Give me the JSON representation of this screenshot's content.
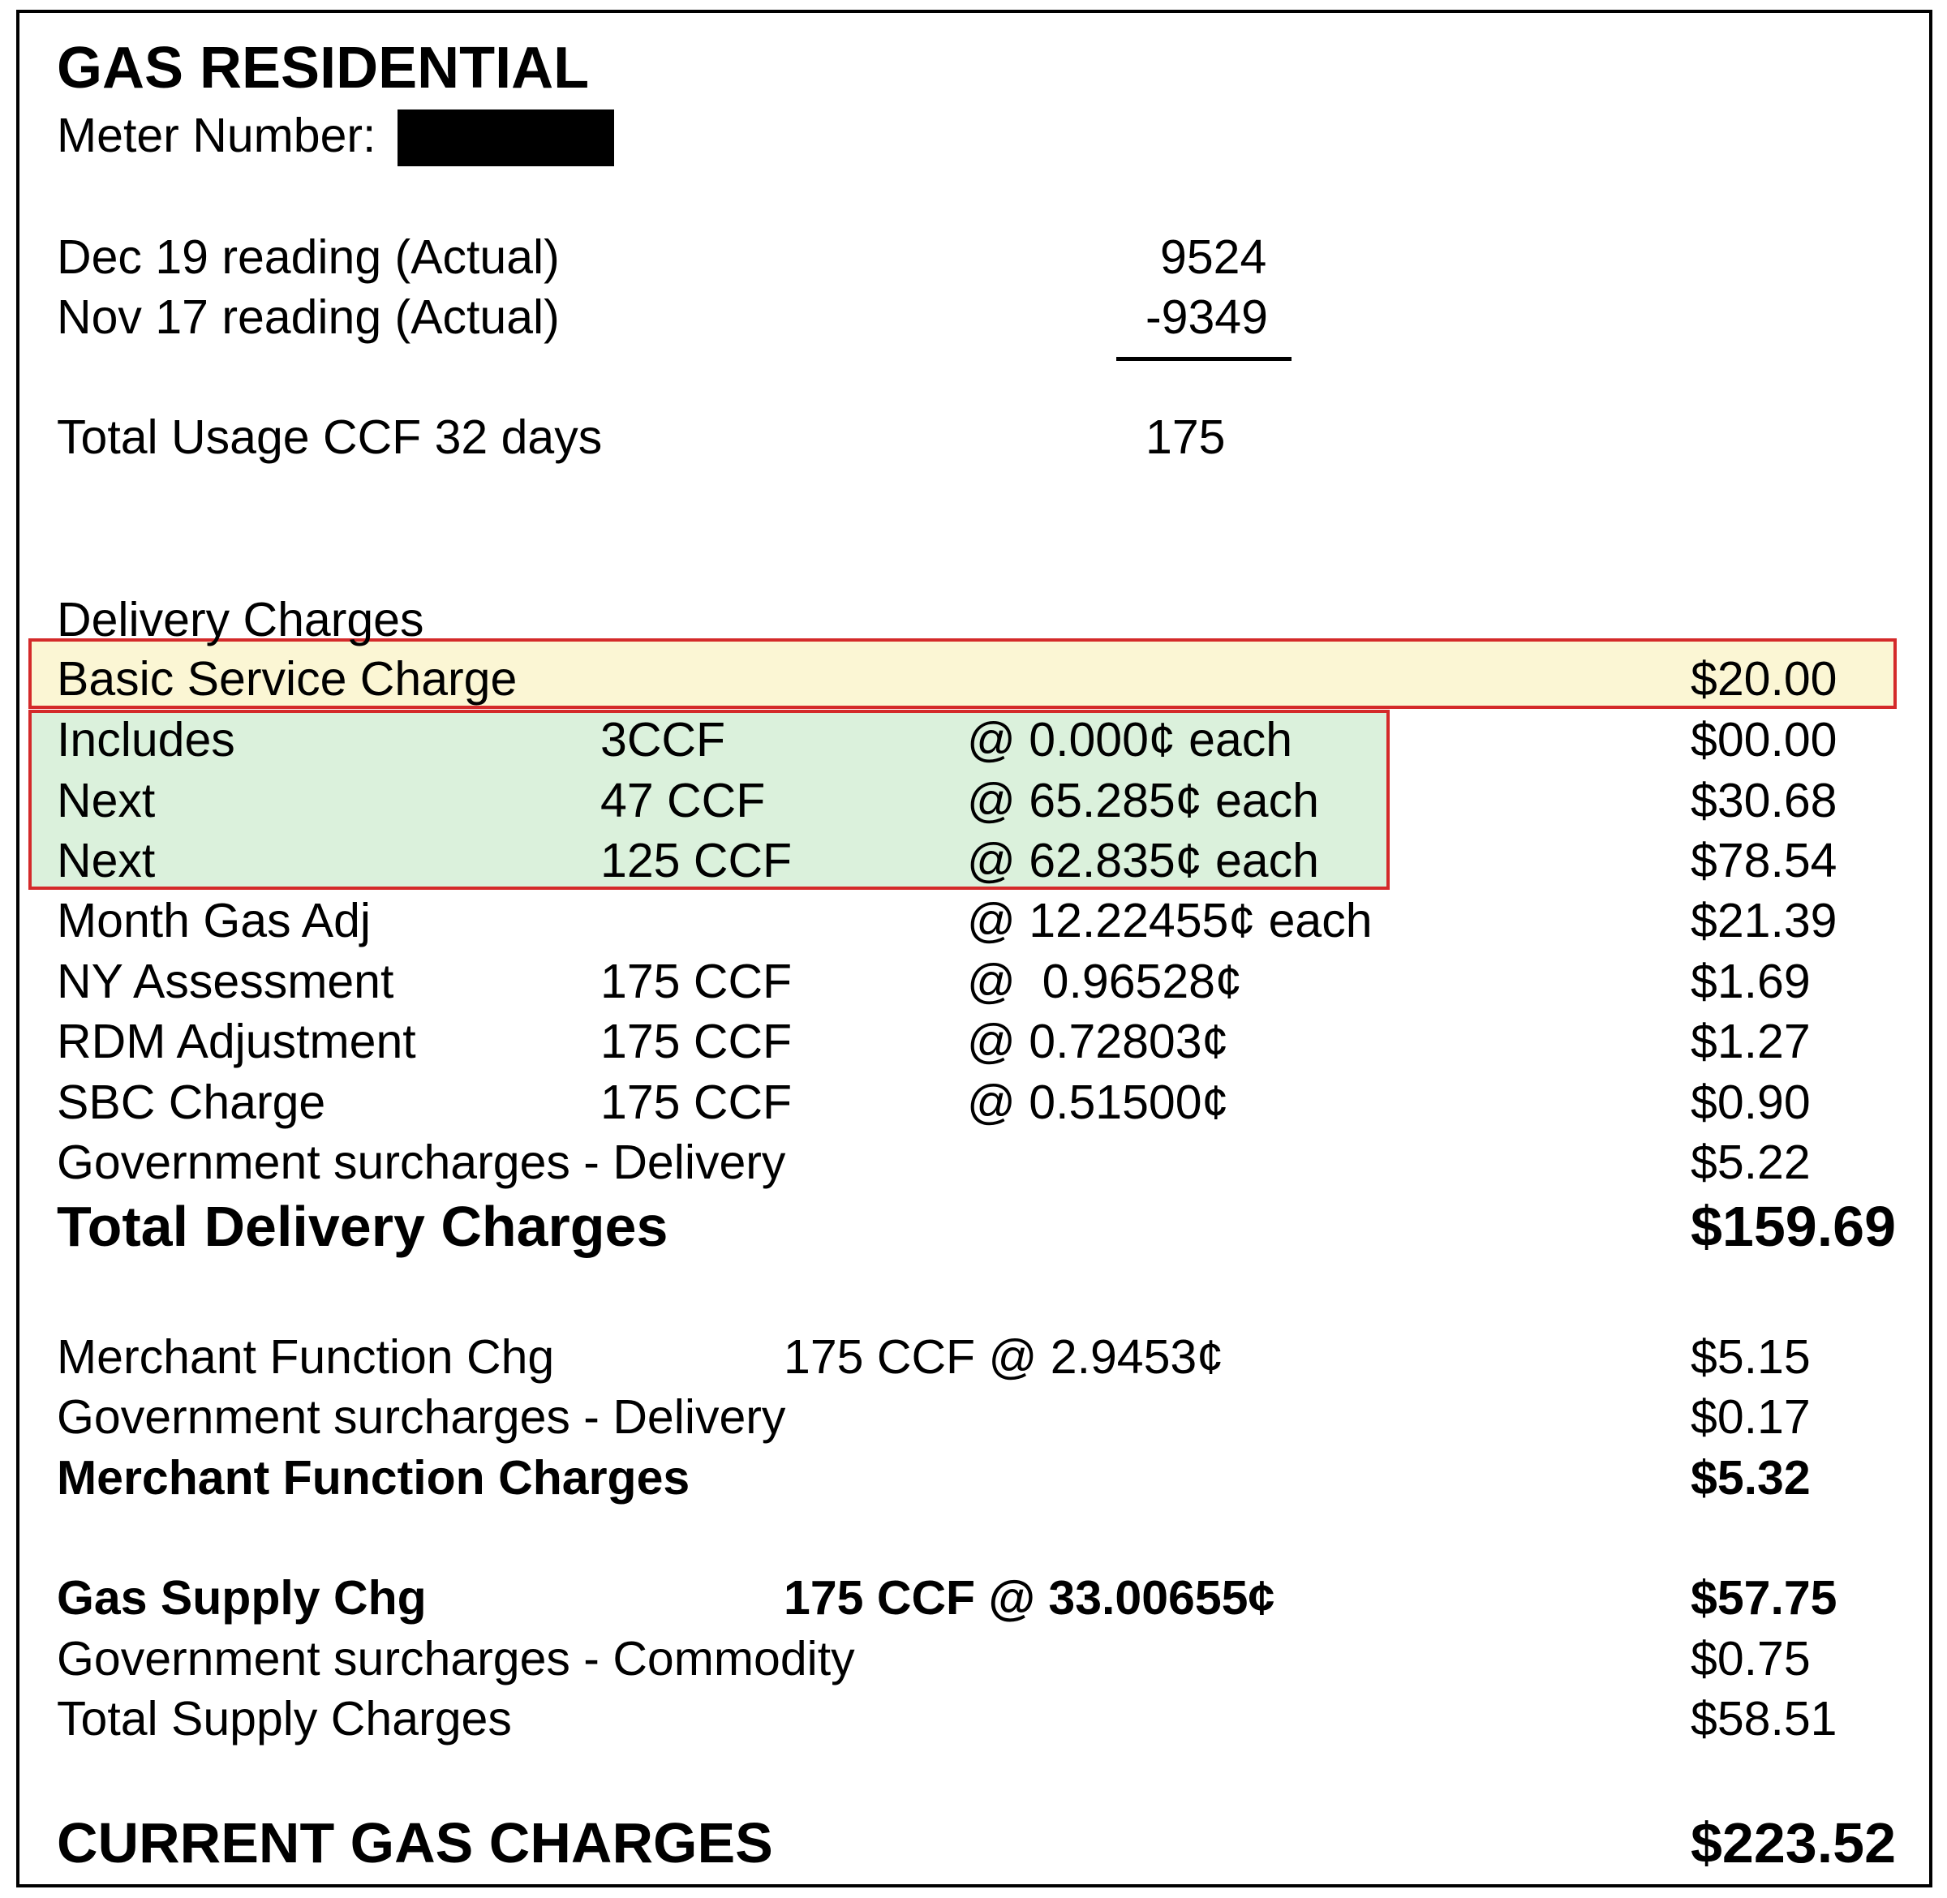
{
  "header": {
    "title": "GAS RESIDENTIAL",
    "meter_label": "Meter Number:"
  },
  "readings": {
    "current": {
      "label": "Dec 19 reading (Actual)",
      "value": "9524"
    },
    "previous": {
      "label": "Nov 17 reading (Actual)",
      "value": "-9349"
    },
    "usage": {
      "label": "Total Usage CCF 32 days",
      "value": "175"
    }
  },
  "delivery": {
    "heading": "Delivery Charges",
    "basic_service": {
      "label": "Basic Service Charge",
      "amount": "$20.00"
    },
    "tiers": [
      {
        "label": "Includes",
        "qty": "3CCF",
        "rate": "@ 0.000¢ each",
        "amount": "$00.00"
      },
      {
        "label": "Next",
        "qty": "47 CCF",
        "rate": "@ 65.285¢ each",
        "amount": "$30.68"
      },
      {
        "label": "Next",
        "qty": "125 CCF",
        "rate": "@ 62.835¢ each",
        "amount": "$78.54"
      }
    ],
    "other": [
      {
        "label": "Month Gas Adj",
        "qty": "",
        "rate": "@ 12.22455¢ each",
        "amount": "$21.39"
      },
      {
        "label": "NY Assessment",
        "qty": "175 CCF",
        "rate": "@  0.96528¢",
        "amount": "$1.69"
      },
      {
        "label": "RDM Adjustment",
        "qty": "175 CCF",
        "rate": "@ 0.72803¢",
        "amount": "$1.27"
      },
      {
        "label": "SBC Charge",
        "qty": "175 CCF",
        "rate": "@ 0.51500¢",
        "amount": "$0.90"
      },
      {
        "label": "Government surcharges - Delivery",
        "qty": "",
        "rate": "",
        "amount": "$5.22"
      }
    ],
    "total": {
      "label": "Total Delivery Charges",
      "amount": "$159.69"
    }
  },
  "merchant": {
    "function_chg": {
      "label": "Merchant Function Chg",
      "detail": "175 CCF @ 2.9453¢",
      "amount": "$5.15"
    },
    "surcharge": {
      "label": "Government surcharges - Delivery",
      "amount": "$0.17"
    },
    "total": {
      "label": "Merchant Function Charges",
      "amount": "$5.32"
    }
  },
  "supply": {
    "gas_supply": {
      "label": "Gas Supply Chg",
      "detail": "175 CCF @ 33.00655¢",
      "amount": "$57.75"
    },
    "surcharge": {
      "label": "Government surcharges - Commodity",
      "amount": "$0.75"
    },
    "total": {
      "label": "Total Supply Charges",
      "amount": "$58.51"
    }
  },
  "current": {
    "label": "CURRENT GAS CHARGES",
    "amount": "$223.52"
  },
  "colors": {
    "highlight_yellow": "#fbf6d4",
    "highlight_green": "#dbf1dc",
    "highlight_border": "#d42a2a"
  }
}
